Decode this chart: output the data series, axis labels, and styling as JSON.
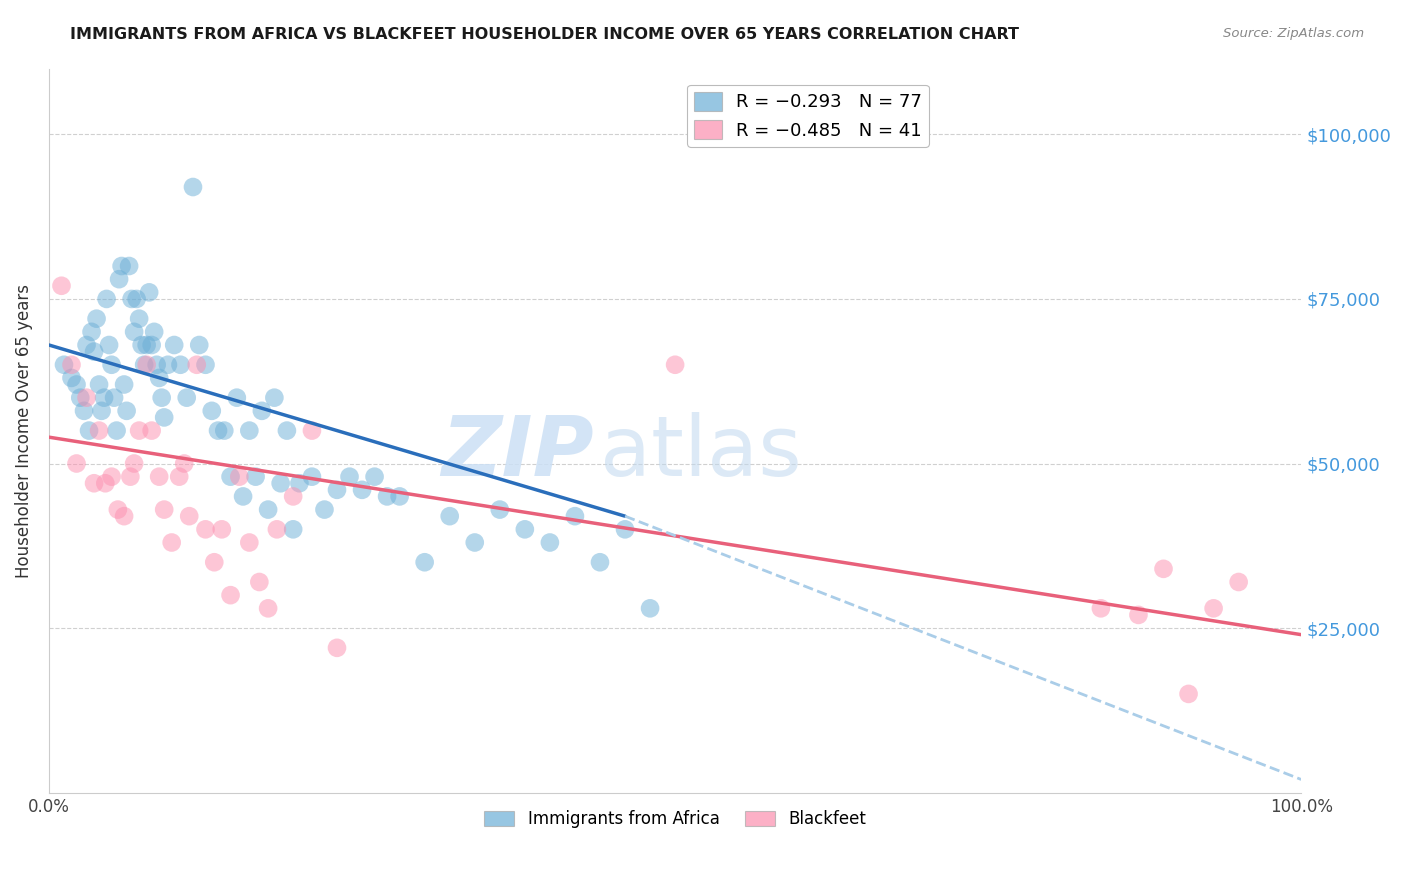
{
  "title": "IMMIGRANTS FROM AFRICA VS BLACKFEET HOUSEHOLDER INCOME OVER 65 YEARS CORRELATION CHART",
  "source": "Source: ZipAtlas.com",
  "ylabel": "Householder Income Over 65 years",
  "ytick_labels": [
    "$25,000",
    "$50,000",
    "$75,000",
    "$100,000"
  ],
  "ytick_values": [
    25000,
    50000,
    75000,
    100000
  ],
  "legend_1_label": "R = −0.293   N = 77",
  "legend_2_label": "R = −0.485   N = 41",
  "legend_series_1": "Immigrants from Africa",
  "legend_series_2": "Blackfeet",
  "color_blue": "#6baed6",
  "color_pink": "#fc8faf",
  "color_line_blue": "#2a6ebb",
  "color_line_pink": "#e8607a",
  "color_dashed": "#aacde8",
  "color_ytick_labels": "#4499dd",
  "background_color": "#ffffff",
  "grid_color": "#d0d0d0",
  "xlim": [
    0.0,
    1.0
  ],
  "ylim": [
    0,
    110000
  ],
  "blue_points_x": [
    0.012,
    0.018,
    0.022,
    0.025,
    0.028,
    0.03,
    0.032,
    0.034,
    0.036,
    0.038,
    0.04,
    0.042,
    0.044,
    0.046,
    0.048,
    0.05,
    0.052,
    0.054,
    0.056,
    0.058,
    0.06,
    0.062,
    0.064,
    0.066,
    0.068,
    0.07,
    0.072,
    0.074,
    0.076,
    0.078,
    0.08,
    0.082,
    0.084,
    0.086,
    0.088,
    0.09,
    0.092,
    0.095,
    0.1,
    0.105,
    0.11,
    0.115,
    0.12,
    0.125,
    0.13,
    0.135,
    0.14,
    0.145,
    0.15,
    0.155,
    0.16,
    0.165,
    0.17,
    0.175,
    0.18,
    0.185,
    0.19,
    0.195,
    0.2,
    0.21,
    0.22,
    0.23,
    0.24,
    0.25,
    0.26,
    0.27,
    0.28,
    0.3,
    0.32,
    0.34,
    0.36,
    0.38,
    0.4,
    0.42,
    0.44,
    0.46,
    0.48
  ],
  "blue_points_y": [
    65000,
    63000,
    62000,
    60000,
    58000,
    68000,
    55000,
    70000,
    67000,
    72000,
    62000,
    58000,
    60000,
    75000,
    68000,
    65000,
    60000,
    55000,
    78000,
    80000,
    62000,
    58000,
    80000,
    75000,
    70000,
    75000,
    72000,
    68000,
    65000,
    68000,
    76000,
    68000,
    70000,
    65000,
    63000,
    60000,
    57000,
    65000,
    68000,
    65000,
    60000,
    92000,
    68000,
    65000,
    58000,
    55000,
    55000,
    48000,
    60000,
    45000,
    55000,
    48000,
    58000,
    43000,
    60000,
    47000,
    55000,
    40000,
    47000,
    48000,
    43000,
    46000,
    48000,
    46000,
    48000,
    45000,
    45000,
    35000,
    42000,
    38000,
    43000,
    40000,
    38000,
    42000,
    35000,
    40000,
    28000
  ],
  "pink_points_x": [
    0.01,
    0.018,
    0.022,
    0.03,
    0.036,
    0.04,
    0.045,
    0.05,
    0.055,
    0.06,
    0.065,
    0.068,
    0.072,
    0.078,
    0.082,
    0.088,
    0.092,
    0.098,
    0.104,
    0.108,
    0.112,
    0.118,
    0.125,
    0.132,
    0.138,
    0.145,
    0.152,
    0.16,
    0.168,
    0.175,
    0.182,
    0.195,
    0.21,
    0.23,
    0.5,
    0.84,
    0.87,
    0.89,
    0.91,
    0.93,
    0.95
  ],
  "pink_points_y": [
    77000,
    65000,
    50000,
    60000,
    47000,
    55000,
    47000,
    48000,
    43000,
    42000,
    48000,
    50000,
    55000,
    65000,
    55000,
    48000,
    43000,
    38000,
    48000,
    50000,
    42000,
    65000,
    40000,
    35000,
    40000,
    30000,
    48000,
    38000,
    32000,
    28000,
    40000,
    45000,
    55000,
    22000,
    65000,
    28000,
    27000,
    34000,
    15000,
    28000,
    32000
  ],
  "blue_line_x": [
    0.0,
    0.46
  ],
  "blue_line_y": [
    68000,
    42000
  ],
  "pink_line_x": [
    0.0,
    1.0
  ],
  "pink_line_y": [
    54000,
    24000
  ],
  "dashed_line_x": [
    0.46,
    1.0
  ],
  "dashed_line_y": [
    42000,
    2000
  ]
}
